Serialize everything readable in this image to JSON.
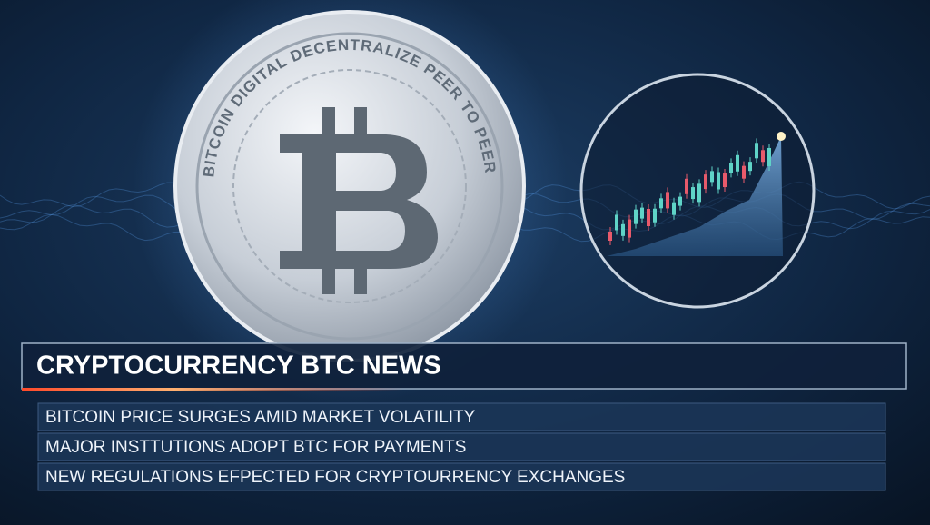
{
  "coin": {
    "ring_text": "BITCOIN DIGITAL DECENTRALIZE PEER TO PEER"
  },
  "headline": "CRYPTOCURRENCY BTC NEWS",
  "news": [
    "BITCOIN PRICE SURGES AMID MARKET VOLATILITY",
    "MAJOR INSTTUTIONS ADOPT BTC FOR PAYMENTS",
    "NEW REGULATIONS EFPECTED FOR CRYPTOURRENCY EXCHANGES"
  ]
}
